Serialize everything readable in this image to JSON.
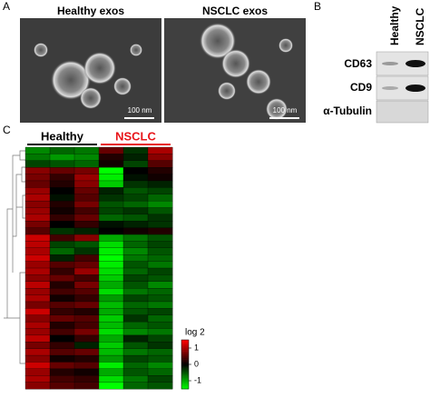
{
  "panel_labels": [
    "A",
    "B",
    "C"
  ],
  "em_images": [
    {
      "title": "Healthy exos",
      "scale_bar": "100 nm"
    },
    {
      "title": "NSCLC exos",
      "scale_bar": "100 nm"
    }
  ],
  "western_blot": {
    "columns": [
      "Healthy",
      "NSCLC"
    ],
    "rows": [
      "CD63",
      "CD9",
      "α-Tubulin"
    ]
  },
  "heatmap": {
    "groups": [
      {
        "name": "Healthy",
        "color": "#000000"
      },
      {
        "name": "NSCLC",
        "color": "#e8161b"
      }
    ],
    "values": [
      [
        -0.8,
        -0.6,
        -0.7,
        0.6,
        -0.3,
        1.0
      ],
      [
        -0.7,
        -0.9,
        -0.8,
        0.2,
        -0.2,
        0.8
      ],
      [
        -0.4,
        -0.5,
        -0.6,
        0.1,
        -0.4,
        0.5
      ],
      [
        0.8,
        0.6,
        0.7,
        -1.5,
        0.0,
        0.2
      ],
      [
        0.7,
        0.3,
        0.9,
        -1.4,
        -0.1,
        0.1
      ],
      [
        0.6,
        0.2,
        0.8,
        -1.2,
        -0.3,
        -0.2
      ],
      [
        0.9,
        0.0,
        0.6,
        -0.2,
        -0.5,
        -0.4
      ],
      [
        1.0,
        -0.1,
        0.5,
        -0.3,
        -0.4,
        -0.6
      ],
      [
        0.8,
        0.2,
        0.7,
        -0.5,
        -0.6,
        -0.8
      ],
      [
        0.9,
        0.1,
        0.4,
        -0.4,
        -0.3,
        -0.5
      ],
      [
        1.0,
        0.3,
        0.6,
        -0.6,
        -0.5,
        -0.3
      ],
      [
        0.7,
        0.0,
        0.3,
        -0.1,
        -0.2,
        -0.3
      ],
      [
        0.5,
        -0.3,
        -0.2,
        0.0,
        0.1,
        0.2
      ],
      [
        1.2,
        0.4,
        0.8,
        -1.0,
        -0.7,
        -0.5
      ],
      [
        1.1,
        -0.4,
        -0.5,
        -1.3,
        -0.6,
        -0.4
      ],
      [
        1.0,
        -0.6,
        -0.3,
        -1.4,
        -0.8,
        -0.5
      ],
      [
        1.2,
        -0.2,
        0.4,
        -1.5,
        -0.7,
        -0.6
      ],
      [
        0.9,
        0.5,
        0.6,
        -1.4,
        -0.5,
        -0.7
      ],
      [
        1.0,
        0.3,
        0.9,
        -1.3,
        -0.6,
        -0.4
      ],
      [
        0.8,
        0.6,
        0.4,
        -1.2,
        -0.4,
        -0.5
      ],
      [
        1.1,
        0.2,
        0.7,
        -1.0,
        -0.5,
        -0.8
      ],
      [
        0.9,
        0.4,
        0.5,
        -1.3,
        -0.7,
        -0.6
      ],
      [
        1.0,
        0.1,
        0.3,
        -0.9,
        -0.4,
        -0.5
      ],
      [
        0.7,
        0.5,
        0.6,
        -1.1,
        -0.6,
        -0.7
      ],
      [
        1.2,
        0.3,
        0.2,
        -1.0,
        -0.5,
        -0.4
      ],
      [
        0.8,
        0.6,
        0.5,
        -1.2,
        -0.3,
        -0.6
      ],
      [
        1.0,
        0.2,
        0.4,
        -1.1,
        -0.6,
        -0.5
      ],
      [
        0.9,
        0.4,
        0.7,
        -1.3,
        -0.8,
        -0.7
      ],
      [
        1.1,
        0.0,
        0.3,
        -1.0,
        -0.2,
        -0.4
      ],
      [
        0.7,
        0.3,
        -0.2,
        -1.2,
        -0.5,
        -0.3
      ],
      [
        1.0,
        0.5,
        0.6,
        -1.1,
        -0.7,
        -0.6
      ],
      [
        0.8,
        0.1,
        0.2,
        -0.9,
        -0.4,
        -0.5
      ],
      [
        1.2,
        0.6,
        0.5,
        -1.4,
        -0.6,
        -0.8
      ],
      [
        0.9,
        0.2,
        0.1,
        -1.0,
        -0.5,
        -0.6
      ],
      [
        1.0,
        0.4,
        0.3,
        -1.3,
        -0.7,
        -0.4
      ],
      [
        0.8,
        0.5,
        0.4,
        -1.5,
        -0.6,
        -0.5
      ]
    ],
    "colorbar": {
      "title": "log 2",
      "ticks": [
        1,
        0,
        -1
      ],
      "lim": [
        -1.5,
        1.5
      ]
    }
  }
}
